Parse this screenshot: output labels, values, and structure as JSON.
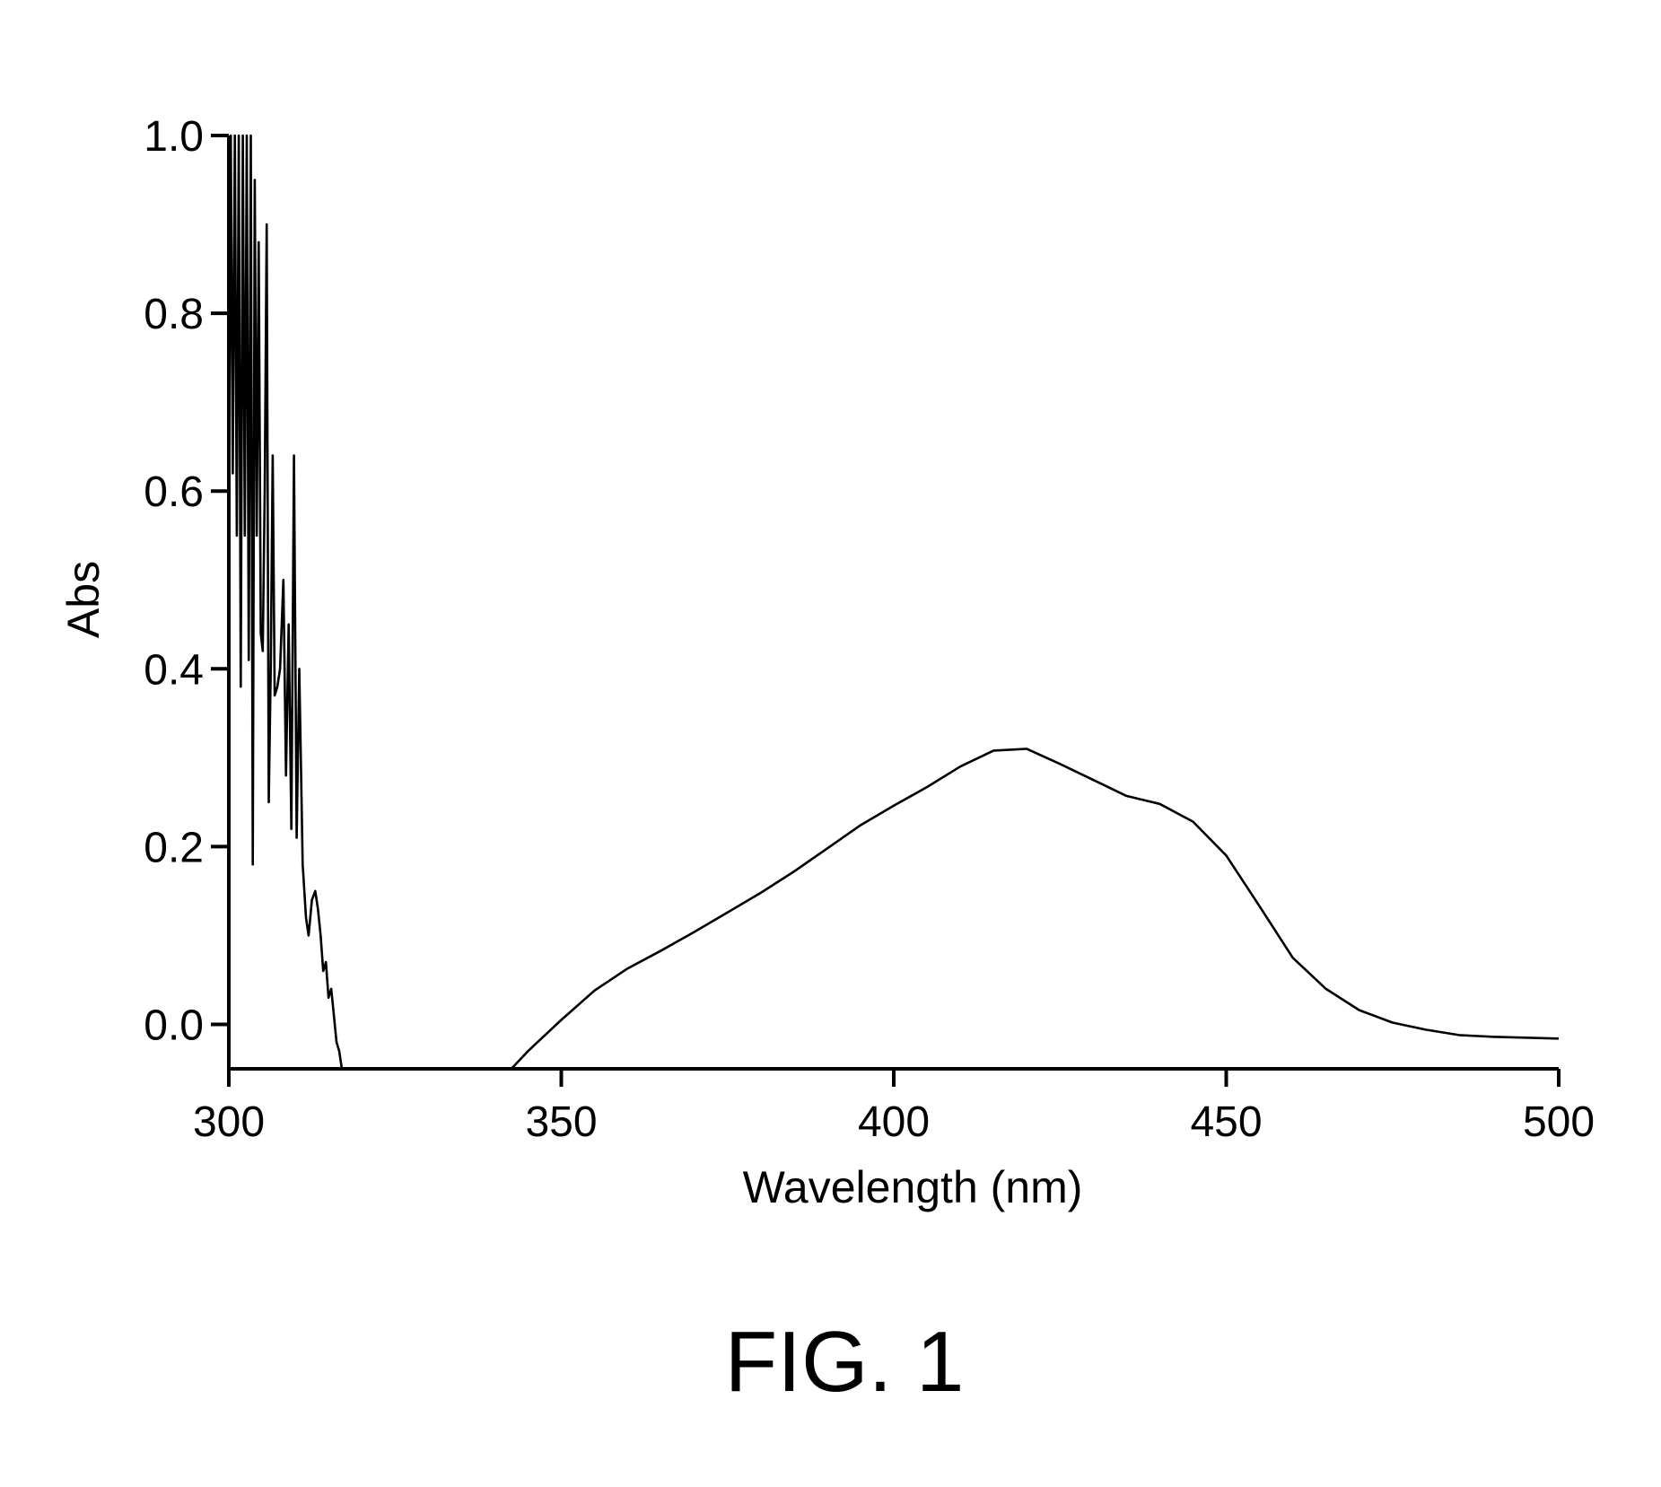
{
  "chart_data": {
    "type": "line",
    "title": "",
    "xlabel": "Wavelength (nm)",
    "ylabel": "Abs",
    "xlim": [
      300,
      500
    ],
    "ylim": [
      -0.05,
      1.0
    ],
    "grid": false,
    "legend": "none",
    "x_ticks": [
      300,
      350,
      400,
      450,
      500
    ],
    "x_tick_labels": [
      "300",
      "350",
      "400",
      "450",
      "500"
    ],
    "y_ticks": [
      0.0,
      0.2,
      0.4,
      0.6,
      0.8,
      1.0
    ],
    "y_tick_labels": [
      "0.0",
      "0.2",
      "0.4",
      "0.6",
      "0.8",
      "1.0"
    ],
    "line_color": "#000000",
    "series": [
      {
        "x": [
          300.0,
          300.3,
          300.6,
          300.9,
          301.2,
          301.5,
          301.8,
          302.1,
          302.4,
          302.7,
          303.0,
          303.3,
          303.6,
          303.9,
          304.2,
          304.5,
          304.8,
          305.1,
          305.4,
          305.7,
          306.0,
          306.3,
          306.6,
          306.9,
          307.3,
          307.7,
          308.2,
          308.6,
          309.0,
          309.4,
          309.8,
          310.2,
          310.6,
          311.1,
          311.6,
          312.0,
          312.5,
          313.0,
          313.4,
          313.8,
          314.2,
          314.6,
          315.0,
          315.4,
          315.8,
          316.2,
          316.6,
          317.0,
          317.5,
          318.0,
          318.5,
          319.0,
          319.5,
          320.0,
          320.5,
          321.0,
          321.5,
          322.0,
          322.5,
          323.0,
          323.5,
          342.5,
          345,
          350,
          355,
          360,
          365,
          370,
          375,
          380,
          385,
          390,
          395,
          400,
          405,
          410,
          415,
          420,
          425,
          430,
          435,
          440,
          445,
          450,
          455,
          460,
          465,
          470,
          475,
          480,
          485,
          490,
          495,
          500
        ],
        "y": [
          0.58,
          1.0,
          0.62,
          1.0,
          0.55,
          1.0,
          0.38,
          1.0,
          0.55,
          1.0,
          0.41,
          1.0,
          0.18,
          0.95,
          0.55,
          0.88,
          0.44,
          0.42,
          0.6,
          0.9,
          0.25,
          0.4,
          0.64,
          0.37,
          0.38,
          0.4,
          0.5,
          0.28,
          0.45,
          0.22,
          0.64,
          0.21,
          0.4,
          0.18,
          0.12,
          0.1,
          0.14,
          0.15,
          0.13,
          0.1,
          0.06,
          0.07,
          0.03,
          0.04,
          0.01,
          -0.02,
          -0.03,
          -0.05,
          -0.05,
          -0.05,
          -0.05,
          -0.05,
          -0.05,
          -0.05,
          -0.05,
          -0.05,
          -0.05,
          -0.05,
          -0.05,
          -0.05,
          -0.05,
          -0.05,
          -0.03,
          0.005,
          0.038,
          0.063,
          0.083,
          0.104,
          0.126,
          0.148,
          0.172,
          0.198,
          0.224,
          0.246,
          0.267,
          0.29,
          0.308,
          0.31,
          0.293,
          0.275,
          0.257,
          0.248,
          0.228,
          0.19,
          0.133,
          0.075,
          0.04,
          0.016,
          0.002,
          -0.006,
          -0.012,
          -0.014,
          -0.015,
          -0.016
        ]
      }
    ]
  },
  "figure_label": "FIG. 1"
}
